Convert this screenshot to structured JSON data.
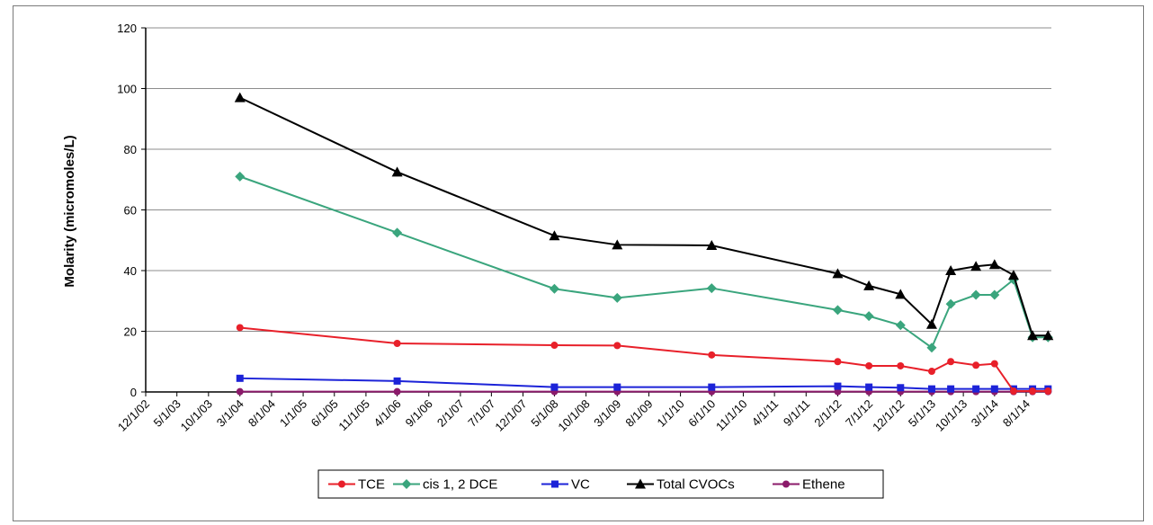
{
  "chart_data": {
    "type": "line",
    "ylabel": "Molarity (micromoles/L)",
    "xlabel": "",
    "title": "",
    "ylim": [
      0,
      120
    ],
    "y_ticks": [
      0,
      20,
      40,
      60,
      80,
      100,
      120
    ],
    "grid": "horizontal",
    "legend_position": "bottom",
    "x_range": [
      "2002-12-01",
      "2014-12-01"
    ],
    "x_ticks": [
      "12/1/02",
      "5/1/03",
      "10/1/03",
      "3/1/04",
      "8/1/04",
      "1/1/05",
      "6/1/05",
      "11/1/05",
      "4/1/06",
      "9/1/06",
      "2/1/07",
      "7/1/07",
      "12/1/07",
      "5/1/08",
      "10/1/08",
      "3/1/09",
      "8/1/09",
      "1/1/10",
      "6/1/10",
      "11/1/10",
      "4/1/11",
      "9/1/11",
      "2/1/12",
      "7/1/12",
      "12/1/12",
      "5/1/13",
      "10/1/13",
      "3/1/14",
      "8/1/14"
    ],
    "x_tick_dates": [
      "2002-12-01",
      "2003-05-01",
      "2003-10-01",
      "2004-03-01",
      "2004-08-01",
      "2005-01-01",
      "2005-06-01",
      "2005-11-01",
      "2006-04-01",
      "2006-09-01",
      "2007-02-01",
      "2007-07-01",
      "2007-12-01",
      "2008-05-01",
      "2008-10-01",
      "2009-03-01",
      "2009-08-01",
      "2010-01-01",
      "2010-06-01",
      "2010-11-01",
      "2011-04-01",
      "2011-09-01",
      "2012-02-01",
      "2012-07-01",
      "2012-12-01",
      "2013-05-01",
      "2013-10-01",
      "2014-03-01",
      "2014-08-01"
    ],
    "series": [
      {
        "name": "TCE",
        "color": "#e8202a",
        "marker": "circle",
        "x": [
          "2004-03-01",
          "2006-04-01",
          "2008-05-01",
          "2009-03-01",
          "2010-06-01",
          "2012-02-01",
          "2012-07-01",
          "2012-12-01",
          "2013-05-01",
          "2013-08-01",
          "2013-12-01",
          "2014-03-01",
          "2014-06-01",
          "2014-09-01",
          "2014-11-15"
        ],
        "y": [
          21.2,
          16,
          15.4,
          15.3,
          12.2,
          10,
          8.6,
          8.6,
          6.8,
          10,
          8.8,
          9.3,
          0.3,
          0.3,
          0.3
        ]
      },
      {
        "name": "cis 1, 2 DCE",
        "color": "#3aa57d",
        "marker": "diamond",
        "x": [
          "2004-03-01",
          "2006-04-01",
          "2008-05-01",
          "2009-03-01",
          "2010-06-01",
          "2012-02-01",
          "2012-07-01",
          "2012-12-01",
          "2013-05-01",
          "2013-08-01",
          "2013-12-01",
          "2014-03-01",
          "2014-06-01",
          "2014-09-01",
          "2014-11-15"
        ],
        "y": [
          71,
          52.5,
          34,
          31,
          34.2,
          27,
          25,
          22,
          14.6,
          29,
          32,
          32,
          37,
          18,
          18
        ]
      },
      {
        "name": "VC",
        "color": "#1c23d8",
        "marker": "square",
        "x": [
          "2004-03-01",
          "2006-04-01",
          "2008-05-01",
          "2009-03-01",
          "2010-06-01",
          "2012-02-01",
          "2012-07-01",
          "2012-12-01",
          "2013-05-01",
          "2013-08-01",
          "2013-12-01",
          "2014-03-01",
          "2014-06-01",
          "2014-09-01",
          "2014-11-15"
        ],
        "y": [
          4.5,
          3.6,
          1.6,
          1.6,
          1.6,
          1.9,
          1.6,
          1.4,
          1,
          1,
          1,
          1,
          1,
          1,
          1
        ]
      },
      {
        "name": "Total CVOCs",
        "color": "#000000",
        "marker": "triangle",
        "x": [
          "2004-03-01",
          "2006-04-01",
          "2008-05-01",
          "2009-03-01",
          "2010-06-01",
          "2012-02-01",
          "2012-07-01",
          "2012-12-01",
          "2013-05-01",
          "2013-08-01",
          "2013-12-01",
          "2014-03-01",
          "2014-06-01",
          "2014-09-01",
          "2014-11-15"
        ],
        "y": [
          97,
          72.5,
          51.5,
          48.5,
          48.3,
          39,
          35,
          32.2,
          22.3,
          40,
          41.4,
          42,
          38.5,
          18.6,
          18.6
        ]
      },
      {
        "name": "Ethene",
        "color": "#8b1a6a",
        "marker": "circle",
        "x": [
          "2004-03-01",
          "2006-04-01",
          "2008-05-01",
          "2009-03-01",
          "2010-06-01",
          "2012-02-01",
          "2012-07-01",
          "2012-12-01",
          "2013-05-01",
          "2013-08-01",
          "2013-12-01",
          "2014-03-01",
          "2014-06-01",
          "2014-09-01",
          "2014-11-15"
        ],
        "y": [
          0.1,
          0.1,
          0.1,
          0.1,
          0.1,
          0.1,
          0.1,
          0.1,
          0.1,
          0.1,
          0.1,
          0.1,
          0.1,
          0.1,
          0.1
        ]
      }
    ]
  }
}
